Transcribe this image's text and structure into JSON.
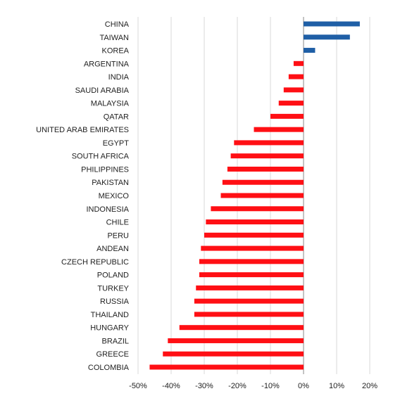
{
  "chart_data": {
    "type": "bar",
    "orientation": "horizontal",
    "categories": [
      "CHINA",
      "TAIWAN",
      "KOREA",
      "ARGENTINA",
      "INDIA",
      "SAUDI ARABIA",
      "MALAYSIA",
      "QATAR",
      "UNITED ARAB EMIRATES",
      "EGYPT",
      "SOUTH AFRICA",
      "PHILIPPINES",
      "PAKISTAN",
      "MEXICO",
      "INDONESIA",
      "CHILE",
      "PERU",
      "ANDEAN",
      "CZECH REPUBLIC",
      "POLAND",
      "TURKEY",
      "RUSSIA",
      "THAILAND",
      "HUNGARY",
      "BRAZIL",
      "GREECE",
      "COLOMBIA"
    ],
    "values": [
      17,
      14,
      3.5,
      -3,
      -4.5,
      -6,
      -7.5,
      -10,
      -15,
      -21,
      -22,
      -23,
      -24.5,
      -25,
      -28,
      -29.5,
      -30,
      -31,
      -31.5,
      -31.5,
      -32.5,
      -33,
      -33,
      -37.5,
      -41,
      -42.5,
      -46.5
    ],
    "xlim": [
      -50,
      20
    ],
    "x_ticks": [
      -50,
      -40,
      -30,
      -20,
      -10,
      0,
      10,
      20
    ],
    "x_tick_labels": [
      "-50%",
      "-40%",
      "-30%",
      "-20%",
      "-10%",
      "0%",
      "10%",
      "20%"
    ],
    "title": "",
    "xlabel": "",
    "ylabel": "",
    "grid": "vertical",
    "colors": {
      "positive": "#1f5fa6",
      "negative": "#ff0f14",
      "grid": "#d9d9d9",
      "axis": "#888888"
    }
  }
}
